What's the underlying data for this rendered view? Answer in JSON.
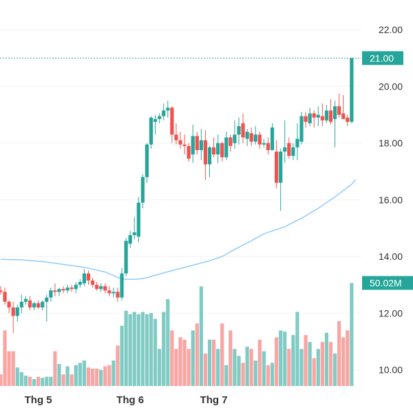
{
  "chart_data": {
    "type": "candlestick",
    "y_axis": {
      "ticks": [
        "22.00",
        "20.00",
        "18.00",
        "16.00",
        "14.00",
        "12.00",
        "10.00"
      ],
      "tick_values": [
        22,
        20,
        18,
        16,
        14,
        12,
        10
      ],
      "range": [
        9.55,
        23.05
      ],
      "position": "right"
    },
    "x_axis": {
      "ticks": [
        {
          "label": "Thg 5",
          "index": 9
        },
        {
          "label": "Thg 6",
          "index": 31
        },
        {
          "label": "Thg 7",
          "index": 51
        }
      ]
    },
    "last_price": {
      "label": "21.00",
      "value": 21.0
    },
    "last_volume": {
      "label": "50.02M"
    },
    "colors": {
      "up": "#26a69a",
      "down": "#ef5350",
      "ma": "#90caf9",
      "up_volume": "#80cbc4",
      "down_volume": "#f8a5a3"
    },
    "candles": [
      [
        12.8,
        12.95,
        12.65,
        12.75
      ],
      [
        12.75,
        12.9,
        12.3,
        12.4
      ],
      [
        12.4,
        12.45,
        12.0,
        12.2
      ],
      [
        12.2,
        12.4,
        11.3,
        11.9
      ],
      [
        11.9,
        12.3,
        11.7,
        12.2
      ],
      [
        12.2,
        12.65,
        12.0,
        12.4
      ],
      [
        12.4,
        12.6,
        12.3,
        12.5
      ],
      [
        12.45,
        12.6,
        12.1,
        12.2
      ],
      [
        12.2,
        12.4,
        12.1,
        12.35
      ],
      [
        12.35,
        12.45,
        12.15,
        12.2
      ],
      [
        12.2,
        12.45,
        12.1,
        12.4
      ],
      [
        12.4,
        12.65,
        11.7,
        12.55
      ],
      [
        12.55,
        12.9,
        12.4,
        12.8
      ],
      [
        12.8,
        13.05,
        12.6,
        12.75
      ],
      [
        12.75,
        12.9,
        12.6,
        12.85
      ],
      [
        12.85,
        12.95,
        12.7,
        12.8
      ],
      [
        12.8,
        13.0,
        12.7,
        12.9
      ],
      [
        12.9,
        13.0,
        12.75,
        12.85
      ],
      [
        12.85,
        13.1,
        12.7,
        13.0
      ],
      [
        13.0,
        13.2,
        12.9,
        13.1
      ],
      [
        13.05,
        13.55,
        12.95,
        13.4
      ],
      [
        13.4,
        13.5,
        13.0,
        13.15
      ],
      [
        13.15,
        13.25,
        12.9,
        13.0
      ],
      [
        13.0,
        13.1,
        12.8,
        12.85
      ],
      [
        12.85,
        13.05,
        12.75,
        12.95
      ],
      [
        12.95,
        13.05,
        12.7,
        12.8
      ],
      [
        12.8,
        12.95,
        12.6,
        12.7
      ],
      [
        12.7,
        12.9,
        12.55,
        12.75
      ],
      [
        12.75,
        12.9,
        12.4,
        12.55
      ],
      [
        12.55,
        13.6,
        12.45,
        13.4
      ],
      [
        13.4,
        14.65,
        13.3,
        14.55
      ],
      [
        14.45,
        14.9,
        14.3,
        14.75
      ],
      [
        14.75,
        15.4,
        14.6,
        14.85
      ],
      [
        14.7,
        16.1,
        14.5,
        15.9
      ],
      [
        15.9,
        16.9,
        15.7,
        16.8
      ],
      [
        16.8,
        18.0,
        16.6,
        17.95
      ],
      [
        17.95,
        18.95,
        17.8,
        18.9
      ],
      [
        18.75,
        19.0,
        18.3,
        18.85
      ],
      [
        18.85,
        19.05,
        18.7,
        18.95
      ],
      [
        18.95,
        19.4,
        18.8,
        19.15
      ],
      [
        19.15,
        19.5,
        18.9,
        19.25
      ],
      [
        19.25,
        19.3,
        18.0,
        18.3
      ],
      [
        18.3,
        18.7,
        17.95,
        18.1
      ],
      [
        18.1,
        18.4,
        17.8,
        17.95
      ],
      [
        17.95,
        18.3,
        17.6,
        17.9
      ],
      [
        17.9,
        18.0,
        17.35,
        17.45
      ],
      [
        17.6,
        18.65,
        17.3,
        18.25
      ],
      [
        18.25,
        18.4,
        17.6,
        17.75
      ],
      [
        17.75,
        18.5,
        17.4,
        18.1
      ],
      [
        18.1,
        18.45,
        16.7,
        17.25
      ],
      [
        17.25,
        17.9,
        16.8,
        17.85
      ],
      [
        17.85,
        18.2,
        17.5,
        17.6
      ],
      [
        17.6,
        18.3,
        17.3,
        18.0
      ],
      [
        18.0,
        18.05,
        17.35,
        17.5
      ],
      [
        17.5,
        18.4,
        17.4,
        18.2
      ],
      [
        18.2,
        18.3,
        17.7,
        17.9
      ],
      [
        18.0,
        18.8,
        17.8,
        18.3
      ],
      [
        18.3,
        18.9,
        17.95,
        18.6
      ],
      [
        18.7,
        19.05,
        18.0,
        18.2
      ],
      [
        18.15,
        18.5,
        17.9,
        18.4
      ],
      [
        18.35,
        18.55,
        17.9,
        18.05
      ],
      [
        18.05,
        18.6,
        17.95,
        18.3
      ],
      [
        18.3,
        18.4,
        17.8,
        17.95
      ],
      [
        17.95,
        18.15,
        17.85,
        18.0
      ],
      [
        18.0,
        18.2,
        17.6,
        17.75
      ],
      [
        17.75,
        18.7,
        17.8,
        18.55
      ],
      [
        17.7,
        18.1,
        16.4,
        16.6
      ],
      [
        16.6,
        17.8,
        15.6,
        17.7
      ],
      [
        17.7,
        18.8,
        17.3,
        17.85
      ],
      [
        18.0,
        18.2,
        17.45,
        17.55
      ],
      [
        17.55,
        18.0,
        17.4,
        17.85
      ],
      [
        17.85,
        18.7,
        17.4,
        18.15
      ],
      [
        18.05,
        19.1,
        17.95,
        18.95
      ],
      [
        18.95,
        19.1,
        18.55,
        18.75
      ],
      [
        18.7,
        19.25,
        18.6,
        19.05
      ],
      [
        19.05,
        19.15,
        18.55,
        18.9
      ],
      [
        18.9,
        19.3,
        18.6,
        19.0
      ],
      [
        18.95,
        19.4,
        18.6,
        18.8
      ],
      [
        18.8,
        19.35,
        18.7,
        19.15
      ],
      [
        19.15,
        19.55,
        18.65,
        18.75
      ],
      [
        18.85,
        19.5,
        17.85,
        19.3
      ],
      [
        19.3,
        19.75,
        18.9,
        19.0
      ],
      [
        19.05,
        19.7,
        18.9,
        18.85
      ],
      [
        18.9,
        19.0,
        18.6,
        18.75
      ],
      [
        18.75,
        21.0,
        18.7,
        21.0
      ]
    ],
    "volume_bars_relative": [
      0.1,
      0.48,
      0.3,
      0.3,
      0.16,
      0.12,
      0.09,
      0.08,
      0.06,
      0.08,
      0.07,
      0.08,
      0.08,
      0.3,
      0.19,
      0.1,
      0.17,
      0.1,
      0.18,
      0.2,
      0.22,
      0.16,
      0.15,
      0.15,
      0.14,
      0.17,
      0.18,
      0.22,
      0.35,
      0.52,
      0.65,
      0.62,
      0.64,
      0.62,
      0.64,
      0.62,
      0.63,
      0.58,
      0.32,
      0.64,
      0.75,
      0.48,
      0.32,
      0.42,
      0.4,
      0.32,
      0.48,
      0.54,
      0.86,
      0.28,
      0.4,
      0.4,
      0.32,
      0.54,
      0.18,
      0.48,
      0.32,
      0.26,
      0.2,
      0.34,
      0.32,
      0.22,
      0.4,
      0.3,
      0.18,
      0.2,
      0.42,
      0.48,
      0.47,
      0.32,
      0.44,
      0.64,
      0.32,
      0.44,
      0.38,
      0.24,
      0.32,
      0.38,
      0.46,
      0.38,
      0.28,
      0.56,
      0.42,
      0.48,
      0.89
    ],
    "moving_average": [
      [
        0,
        13.9
      ],
      [
        5,
        13.88
      ],
      [
        10,
        13.82
      ],
      [
        15,
        13.72
      ],
      [
        20,
        13.62
      ],
      [
        25,
        13.45
      ],
      [
        29,
        13.2
      ],
      [
        31,
        13.19
      ],
      [
        33,
        13.2
      ],
      [
        35,
        13.25
      ],
      [
        39,
        13.42
      ],
      [
        45,
        13.65
      ],
      [
        50,
        13.85
      ],
      [
        53,
        14.0
      ],
      [
        56,
        14.25
      ],
      [
        60,
        14.55
      ],
      [
        63,
        14.8
      ],
      [
        68,
        15.05
      ],
      [
        72,
        15.35
      ],
      [
        76,
        15.7
      ],
      [
        80,
        16.1
      ],
      [
        84,
        16.55
      ],
      [
        85,
        16.72
      ]
    ]
  }
}
